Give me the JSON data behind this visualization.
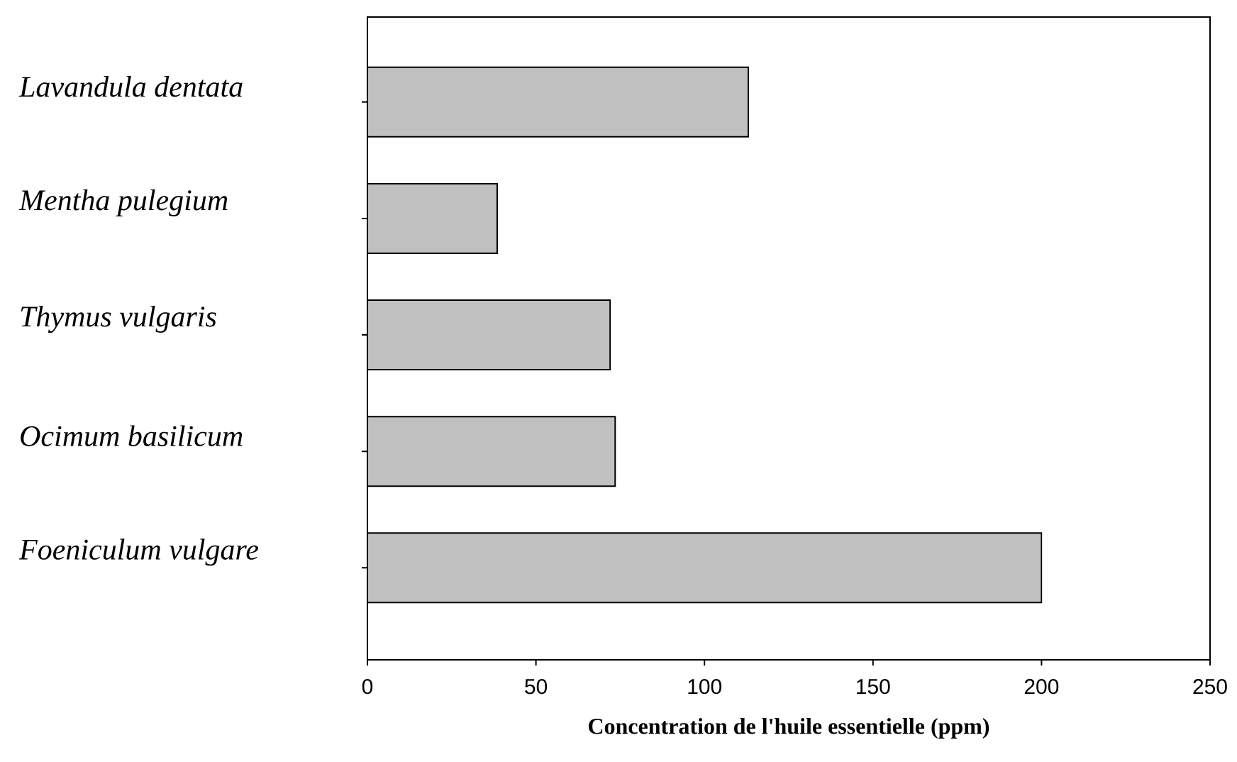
{
  "chart_data": {
    "type": "bar",
    "orientation": "horizontal",
    "xlabel": "Concentration de l'huile essentielle (ppm)",
    "categories": [
      "*Lavandula dentata*",
      "*Mentha pulegium*",
      "*Thymus vulgaris*",
      "*Ocimum basilicum*",
      "*Foeniculum vulgare*"
    ],
    "values": [
      113,
      38.5,
      72,
      73.5,
      200
    ],
    "color": "#c0c0c0",
    "xlim": [
      0,
      250
    ],
    "xticks": [
      0,
      50,
      100,
      150,
      200,
      250
    ]
  }
}
